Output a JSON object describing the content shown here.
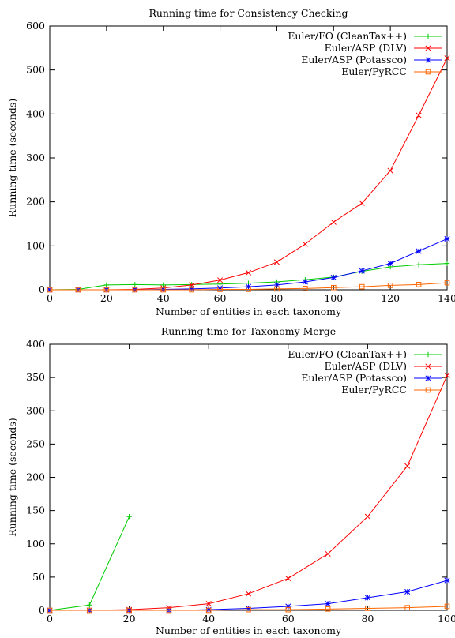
{
  "chart_data": [
    {
      "type": "line",
      "title": "Running time for Consistency Checking",
      "xlabel": "Number of entities in each taxonomy",
      "ylabel": "Running time (seconds)",
      "xlim": [
        0,
        140
      ],
      "ylim": [
        0,
        600
      ],
      "xticks": [
        0,
        20,
        40,
        60,
        80,
        100,
        120,
        140
      ],
      "yticks": [
        0,
        100,
        200,
        300,
        400,
        500,
        600
      ],
      "grid": false,
      "legend": "top-right",
      "series": [
        {
          "name": "Euler/FO (CleanTax++)",
          "color": "#00cc00",
          "marker": "plus",
          "points": [
            [
              0,
              0
            ],
            [
              10,
              1
            ],
            [
              20,
              11
            ],
            [
              30,
              12
            ],
            [
              40,
              11
            ],
            [
              50,
              12
            ],
            [
              60,
              13
            ],
            [
              70,
              15
            ],
            [
              80,
              18
            ],
            [
              90,
              23
            ],
            [
              100,
              29
            ],
            [
              110,
              42
            ],
            [
              120,
              52
            ],
            [
              130,
              57
            ],
            [
              140,
              60
            ]
          ]
        },
        {
          "name": "Euler/ASP (DLV)",
          "color": "#ff0000",
          "marker": "cross",
          "points": [
            [
              0,
              0
            ],
            [
              10,
              0
            ],
            [
              20,
              0
            ],
            [
              30,
              1
            ],
            [
              40,
              4
            ],
            [
              50,
              11
            ],
            [
              60,
              22
            ],
            [
              70,
              39
            ],
            [
              80,
              63
            ],
            [
              90,
              104
            ],
            [
              100,
              154
            ],
            [
              110,
              197
            ],
            [
              120,
              271
            ],
            [
              130,
              397
            ],
            [
              140,
              527
            ]
          ]
        },
        {
          "name": "Euler/ASP (Potassco)",
          "color": "#0000ff",
          "marker": "star",
          "points": [
            [
              0,
              0
            ],
            [
              10,
              0
            ],
            [
              20,
              0
            ],
            [
              30,
              0
            ],
            [
              40,
              1
            ],
            [
              50,
              2
            ],
            [
              60,
              4
            ],
            [
              70,
              7
            ],
            [
              80,
              11
            ],
            [
              90,
              18
            ],
            [
              100,
              28
            ],
            [
              110,
              43
            ],
            [
              120,
              60
            ],
            [
              130,
              88
            ],
            [
              140,
              116
            ]
          ]
        },
        {
          "name": "Euler/PyRCC",
          "color": "#ff6600",
          "marker": "square",
          "points": [
            [
              0,
              0
            ],
            [
              10,
              0
            ],
            [
              20,
              0
            ],
            [
              30,
              0
            ],
            [
              40,
              0
            ],
            [
              50,
              0
            ],
            [
              60,
              1
            ],
            [
              70,
              1
            ],
            [
              80,
              2
            ],
            [
              90,
              3
            ],
            [
              100,
              5
            ],
            [
              110,
              7
            ],
            [
              120,
              10
            ],
            [
              130,
              12
            ],
            [
              140,
              16
            ]
          ]
        }
      ]
    },
    {
      "type": "line",
      "title": "Running time for Taxonomy Merge",
      "xlabel": "Number of entities in each taxonomy",
      "ylabel": "Running time (seconds)",
      "xlim": [
        0,
        100
      ],
      "ylim": [
        0,
        400
      ],
      "xticks": [
        0,
        20,
        40,
        60,
        80,
        100
      ],
      "yticks": [
        0,
        50,
        100,
        150,
        200,
        250,
        300,
        350,
        400
      ],
      "grid": false,
      "legend": "top-right",
      "series": [
        {
          "name": "Euler/FO (CleanTax++)",
          "color": "#00cc00",
          "marker": "plus",
          "points": [
            [
              0,
              0
            ],
            [
              10,
              8
            ],
            [
              20,
              141
            ]
          ]
        },
        {
          "name": "Euler/ASP (DLV)",
          "color": "#ff0000",
          "marker": "cross",
          "points": [
            [
              0,
              0
            ],
            [
              10,
              0
            ],
            [
              20,
              1
            ],
            [
              30,
              4
            ],
            [
              40,
              10
            ],
            [
              50,
              25
            ],
            [
              60,
              48
            ],
            [
              70,
              85
            ],
            [
              80,
              141
            ],
            [
              90,
              217
            ],
            [
              100,
              353
            ]
          ]
        },
        {
          "name": "Euler/ASP (Potassco)",
          "color": "#0000ff",
          "marker": "star",
          "points": [
            [
              0,
              0
            ],
            [
              10,
              0
            ],
            [
              20,
              0
            ],
            [
              30,
              0
            ],
            [
              40,
              1
            ],
            [
              50,
              3
            ],
            [
              60,
              6
            ],
            [
              70,
              10
            ],
            [
              80,
              19
            ],
            [
              90,
              28
            ],
            [
              100,
              45
            ]
          ]
        },
        {
          "name": "Euler/PyRCC",
          "color": "#ff6600",
          "marker": "square",
          "points": [
            [
              0,
              0
            ],
            [
              10,
              0
            ],
            [
              20,
              0
            ],
            [
              30,
              0
            ],
            [
              40,
              0
            ],
            [
              50,
              1
            ],
            [
              60,
              1
            ],
            [
              70,
              2
            ],
            [
              80,
              3
            ],
            [
              90,
              4
            ],
            [
              100,
              6
            ]
          ]
        }
      ]
    }
  ]
}
